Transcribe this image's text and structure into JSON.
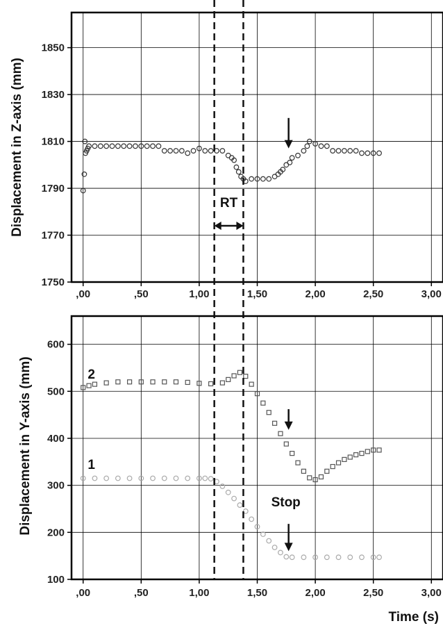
{
  "chart_data": [
    {
      "type": "scatter",
      "panel": "top",
      "ylabel": "Displacement in Z-axis (mm)",
      "xlim": [
        -0.1,
        3.1
      ],
      "ylim": [
        1750,
        1865
      ],
      "xticks": [
        0.0,
        0.5,
        1.0,
        1.5,
        2.0,
        2.5,
        3.0
      ],
      "xtick_labels": [
        ",00",
        ",50",
        "1,00",
        "1,50",
        "2,00",
        "2,50",
        "3,00"
      ],
      "yticks": [
        1750,
        1770,
        1790,
        1810,
        1830,
        1850
      ],
      "ytick_labels": [
        "1750",
        "1770",
        "1790",
        "1810",
        "1830",
        "1850"
      ],
      "grid": true,
      "marker": "open-circle",
      "series": [
        {
          "color": "#333333",
          "points": [
            [
              0.0,
              1789
            ],
            [
              0.01,
              1796
            ],
            [
              0.015,
              1810
            ],
            [
              0.02,
              1805
            ],
            [
              0.03,
              1806
            ],
            [
              0.04,
              1807
            ],
            [
              0.05,
              1808
            ],
            [
              0.1,
              1808
            ],
            [
              0.15,
              1808
            ],
            [
              0.2,
              1808
            ],
            [
              0.25,
              1808
            ],
            [
              0.3,
              1808
            ],
            [
              0.35,
              1808
            ],
            [
              0.4,
              1808
            ],
            [
              0.45,
              1808
            ],
            [
              0.5,
              1808
            ],
            [
              0.55,
              1808
            ],
            [
              0.6,
              1808
            ],
            [
              0.65,
              1808
            ],
            [
              0.7,
              1806
            ],
            [
              0.75,
              1806
            ],
            [
              0.8,
              1806
            ],
            [
              0.85,
              1806
            ],
            [
              0.9,
              1805
            ],
            [
              0.95,
              1806
            ],
            [
              1.0,
              1807
            ],
            [
              1.05,
              1806
            ],
            [
              1.1,
              1806
            ],
            [
              1.15,
              1806
            ],
            [
              1.2,
              1806
            ],
            [
              1.25,
              1804
            ],
            [
              1.28,
              1803
            ],
            [
              1.3,
              1802
            ],
            [
              1.32,
              1799
            ],
            [
              1.34,
              1797
            ],
            [
              1.36,
              1795
            ],
            [
              1.38,
              1794
            ],
            [
              1.4,
              1793
            ],
            [
              1.45,
              1794
            ],
            [
              1.5,
              1794
            ],
            [
              1.55,
              1794
            ],
            [
              1.6,
              1794
            ],
            [
              1.65,
              1795
            ],
            [
              1.68,
              1796
            ],
            [
              1.7,
              1797
            ],
            [
              1.72,
              1798
            ],
            [
              1.75,
              1800
            ],
            [
              1.78,
              1801
            ],
            [
              1.8,
              1803
            ],
            [
              1.85,
              1804
            ],
            [
              1.9,
              1806
            ],
            [
              1.93,
              1808
            ],
            [
              1.95,
              1810
            ],
            [
              2.0,
              1809
            ],
            [
              2.05,
              1808
            ],
            [
              2.1,
              1808
            ],
            [
              2.15,
              1806
            ],
            [
              2.2,
              1806
            ],
            [
              2.25,
              1806
            ],
            [
              2.3,
              1806
            ],
            [
              2.35,
              1806
            ],
            [
              2.4,
              1805
            ],
            [
              2.45,
              1805
            ],
            [
              2.5,
              1805
            ],
            [
              2.55,
              1805
            ]
          ]
        }
      ]
    },
    {
      "type": "scatter",
      "panel": "bottom",
      "ylabel": "Displacement in Y-axis (mm)",
      "xlabel": "Time (s)",
      "xlim": [
        -0.1,
        3.1
      ],
      "ylim": [
        100,
        660
      ],
      "xticks": [
        0.0,
        0.5,
        1.0,
        1.5,
        2.0,
        2.5,
        3.0
      ],
      "xtick_labels": [
        ",00",
        ",50",
        "1,00",
        "1,50",
        "2,00",
        "2,50",
        "3,00"
      ],
      "yticks": [
        100,
        200,
        300,
        400,
        500,
        600
      ],
      "ytick_labels": [
        "100",
        "200",
        "300",
        "400",
        "500",
        "600"
      ],
      "grid": true,
      "series": [
        {
          "name": "2",
          "marker": "open-square",
          "color": "#555555",
          "points": [
            [
              0.0,
              508
            ],
            [
              0.05,
              512
            ],
            [
              0.1,
              515
            ],
            [
              0.2,
              518
            ],
            [
              0.3,
              520
            ],
            [
              0.4,
              520
            ],
            [
              0.5,
              520
            ],
            [
              0.6,
              520
            ],
            [
              0.7,
              520
            ],
            [
              0.8,
              520
            ],
            [
              0.9,
              519
            ],
            [
              1.0,
              517
            ],
            [
              1.1,
              516
            ],
            [
              1.2,
              518
            ],
            [
              1.25,
              525
            ],
            [
              1.3,
              533
            ],
            [
              1.35,
              540
            ],
            [
              1.4,
              532
            ],
            [
              1.45,
              515
            ],
            [
              1.5,
              495
            ],
            [
              1.55,
              475
            ],
            [
              1.6,
              455
            ],
            [
              1.65,
              432
            ],
            [
              1.7,
              410
            ],
            [
              1.75,
              388
            ],
            [
              1.8,
              368
            ],
            [
              1.85,
              348
            ],
            [
              1.9,
              330
            ],
            [
              1.95,
              316
            ],
            [
              2.0,
              312
            ],
            [
              2.05,
              318
            ],
            [
              2.1,
              330
            ],
            [
              2.15,
              340
            ],
            [
              2.2,
              348
            ],
            [
              2.25,
              355
            ],
            [
              2.3,
              360
            ],
            [
              2.35,
              365
            ],
            [
              2.4,
              368
            ],
            [
              2.45,
              372
            ],
            [
              2.5,
              375
            ],
            [
              2.55,
              375
            ]
          ]
        },
        {
          "name": "1",
          "marker": "open-circle",
          "color": "#aaaaaa",
          "points": [
            [
              0.0,
              315
            ],
            [
              0.1,
              315
            ],
            [
              0.2,
              315
            ],
            [
              0.3,
              315
            ],
            [
              0.4,
              315
            ],
            [
              0.5,
              315
            ],
            [
              0.6,
              315
            ],
            [
              0.7,
              315
            ],
            [
              0.8,
              315
            ],
            [
              0.9,
              315
            ],
            [
              1.0,
              315
            ],
            [
              1.05,
              315
            ],
            [
              1.1,
              314
            ],
            [
              1.15,
              308
            ],
            [
              1.2,
              298
            ],
            [
              1.25,
              285
            ],
            [
              1.3,
              272
            ],
            [
              1.35,
              258
            ],
            [
              1.4,
              245
            ],
            [
              1.45,
              228
            ],
            [
              1.5,
              212
            ],
            [
              1.55,
              196
            ],
            [
              1.6,
              182
            ],
            [
              1.65,
              168
            ],
            [
              1.7,
              157
            ],
            [
              1.75,
              148
            ],
            [
              1.8,
              147
            ],
            [
              1.9,
              147
            ],
            [
              2.0,
              147
            ],
            [
              2.1,
              147
            ],
            [
              2.2,
              147
            ],
            [
              2.3,
              147
            ],
            [
              2.4,
              147
            ],
            [
              2.5,
              147
            ],
            [
              2.55,
              147
            ]
          ]
        }
      ]
    }
  ],
  "annotations": {
    "rt_label": "RT",
    "stop_label": "Stop",
    "rt_start_x": 1.13,
    "rt_end_x": 1.38,
    "top_arrow_x": 1.77,
    "bottom_arrow_x": 1.77
  }
}
